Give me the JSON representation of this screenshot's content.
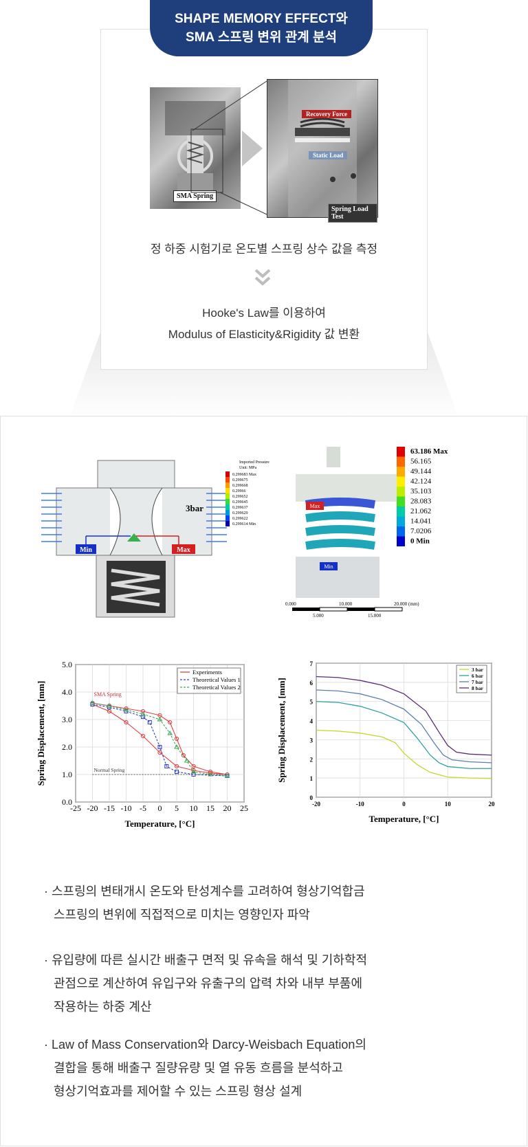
{
  "header": {
    "title_line1": "SHAPE MEMORY EFFECT와",
    "title_line2": "SMA 스프링 변위 관계 분석"
  },
  "photos": {
    "left_label": "SMA Spring",
    "recovery_force": "Recovery Force",
    "static_load": "Static Load",
    "test_label": "Spring Load Test"
  },
  "description": {
    "line1": "정 하중 시험기로 온도별 스프링 상수 값을 측정",
    "line2": "Hooke's Law를 이용하여",
    "line3": "Modulus of Elasticity&Rigidity 값 변환"
  },
  "simulation": {
    "pressure_legend_title": "Imported Pressure",
    "pressure_legend_unit": "Unit: MPa",
    "pressure_values": [
      "0.299683 Max",
      "0.299675",
      "0.299668",
      "0.29966",
      "0.299652",
      "0.299645",
      "0.299637",
      "0.299629",
      "0.299622",
      "0.299614 Min"
    ],
    "pressure_colors": [
      "#d40000",
      "#ff4400",
      "#ff9900",
      "#ffdd00",
      "#aaee00",
      "#33dd33",
      "#00ccaa",
      "#0099dd",
      "#0044ee",
      "#0000aa"
    ],
    "bar_label": "3bar",
    "min_label": "Min",
    "max_label": "Max",
    "stress_values": [
      "63.186 Max",
      "56.165",
      "49.144",
      "42.124",
      "35.103",
      "28.083",
      "21.062",
      "14.041",
      "7.0206",
      "0 Min"
    ],
    "stress_colors": [
      "#e00000",
      "#ff6600",
      "#ffaa00",
      "#ffee00",
      "#bbee00",
      "#44dd22",
      "#00ccaa",
      "#00aadd",
      "#0066ee",
      "#0000cc"
    ],
    "scale_top": [
      "0.000",
      "10.000",
      "20.000 (mm)"
    ],
    "scale_bottom": [
      "5.000",
      "15.000"
    ]
  },
  "chart_data": [
    {
      "type": "line",
      "xlabel": "Temperature, [°C]",
      "ylabel": "Spring Displacement, [mm]",
      "xlim": [
        -25,
        25
      ],
      "ylim": [
        0,
        5
      ],
      "xticks": [
        "-25",
        "-20",
        "-15",
        "-10",
        "-5",
        "0",
        "5",
        "10",
        "15",
        "20",
        "25"
      ],
      "yticks": [
        "0.0",
        "1.0",
        "2.0",
        "3.0",
        "4.0",
        "5.0"
      ],
      "grid": true,
      "legend": "top-right",
      "annotations": [
        "SMA Spring",
        "Normal Spring"
      ],
      "series": [
        {
          "name": "Experiments",
          "color": "#e04040",
          "x": [
            -20,
            -15,
            -10,
            -5,
            0,
            3,
            5,
            7,
            10,
            15,
            20,
            15,
            10,
            5,
            0,
            -5,
            -10,
            -15,
            -20
          ],
          "y": [
            3.6,
            3.5,
            3.4,
            3.3,
            3.15,
            2.9,
            2.3,
            1.7,
            1.3,
            1.1,
            1.0,
            1.05,
            1.15,
            1.3,
            1.8,
            2.4,
            2.9,
            3.3,
            3.55
          ]
        },
        {
          "name": "Theoretical Values 1",
          "color": "#2a3fd1",
          "x": [
            -20,
            -15,
            -10,
            -5,
            -3,
            0,
            2,
            5,
            10,
            20
          ],
          "y": [
            3.55,
            3.45,
            3.3,
            3.1,
            2.9,
            2.0,
            1.3,
            1.1,
            1.0,
            0.95
          ]
        },
        {
          "name": "Theoretical Values 2",
          "color": "#3aa655",
          "x": [
            -20,
            -15,
            -10,
            -5,
            0,
            3,
            5,
            8,
            10,
            15,
            20
          ],
          "y": [
            3.6,
            3.5,
            3.35,
            3.2,
            3.0,
            2.5,
            2.0,
            1.5,
            1.1,
            1.0,
            0.95
          ]
        },
        {
          "name": "",
          "color": "#555555",
          "x": [
            -20,
            20
          ],
          "y": [
            1.0,
            1.0
          ]
        }
      ]
    },
    {
      "type": "line",
      "xlabel": "Temperature, [°C]",
      "ylabel": "Spring Displacement, [mm]",
      "xlim": [
        -20,
        20
      ],
      "ylim": [
        0,
        7
      ],
      "xticks": [
        "-20",
        "-10",
        "0",
        "10",
        "20"
      ],
      "yticks": [
        "0",
        "1",
        "2",
        "3",
        "4",
        "5",
        "6",
        "7"
      ],
      "grid": true,
      "legend": "top-right",
      "series": [
        {
          "name": "3 bar",
          "color": "#c8d628",
          "x": [
            -20,
            -15,
            -10,
            -5,
            -2,
            0,
            3,
            6,
            10,
            15,
            20
          ],
          "y": [
            3.5,
            3.45,
            3.35,
            3.15,
            2.85,
            2.3,
            1.7,
            1.3,
            1.05,
            1.0,
            0.98
          ]
        },
        {
          "name": "6 bar",
          "color": "#2aa0a0",
          "x": [
            -20,
            -15,
            -10,
            -5,
            0,
            3,
            6,
            8,
            10,
            15,
            20
          ],
          "y": [
            5.0,
            4.95,
            4.75,
            4.4,
            3.9,
            3.1,
            2.2,
            1.8,
            1.6,
            1.5,
            1.5
          ]
        },
        {
          "name": "7 bar",
          "color": "#5a7fb0",
          "x": [
            -20,
            -15,
            -10,
            -5,
            0,
            4,
            7,
            9,
            11,
            15,
            20
          ],
          "y": [
            5.6,
            5.55,
            5.4,
            5.1,
            4.6,
            3.8,
            2.8,
            2.2,
            1.95,
            1.85,
            1.8
          ]
        },
        {
          "name": "8 bar",
          "color": "#5a2a7a",
          "x": [
            -20,
            -15,
            -10,
            -5,
            0,
            5,
            8,
            10,
            12,
            15,
            20
          ],
          "y": [
            6.3,
            6.25,
            6.1,
            5.85,
            5.4,
            4.5,
            3.4,
            2.7,
            2.35,
            2.25,
            2.2
          ]
        }
      ]
    }
  ],
  "bullets": [
    [
      "· 스프링의 변태개시 온도와 탄성계수를 고려하여 형상기억합금",
      "스프링의 변위에 직접적으로 미치는 영향인자 파악"
    ],
    [
      "· 유입량에 따른 실시간 배출구 면적 및 유속을 해석 및 기하학적",
      "관점으로 계산하여 유입구와 유출구의 압력 차와 내부 부품에",
      "작용하는 하중 계산"
    ],
    [
      "· Law of Mass Conservation와 Darcy-Weisbach Equation의",
      "결합을 통해 배출구 질량유량 및 열 유동 흐름을 분석하고",
      "형상기억효과를 제어할 수 있는 스프링 형상 설계"
    ]
  ]
}
